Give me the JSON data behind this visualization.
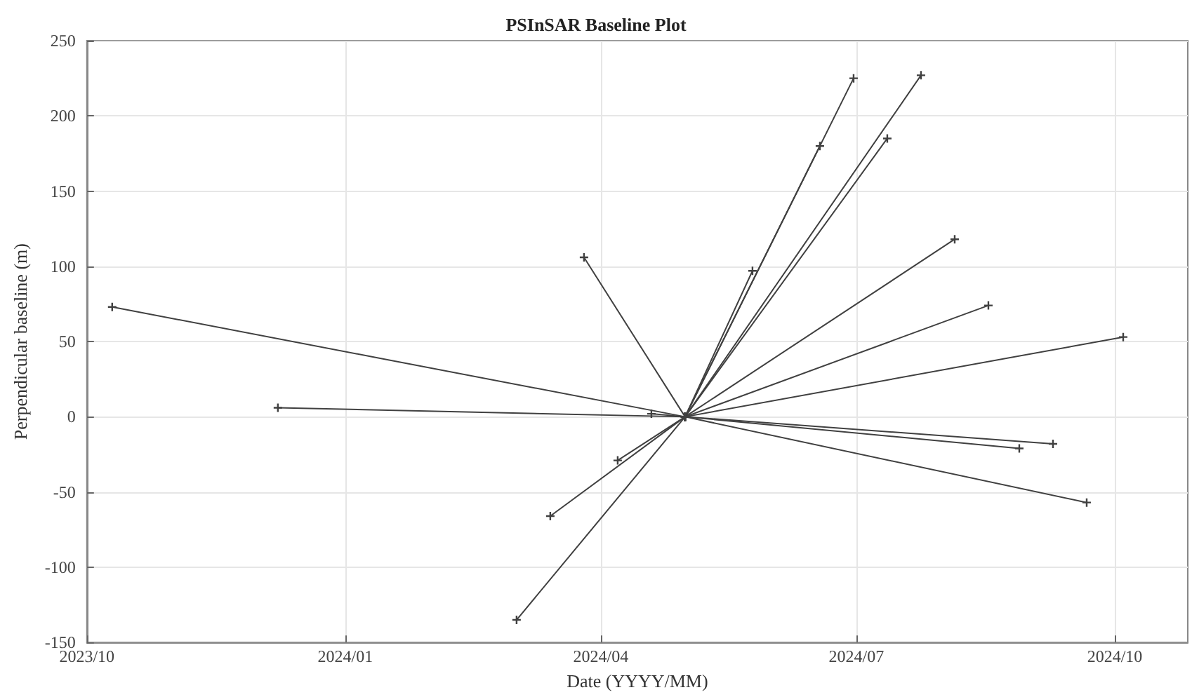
{
  "chart_data": {
    "type": "line",
    "title": "PSInSAR Baseline Plot",
    "xlabel": "Date (YYYY/MM)",
    "ylabel": "Perpendicular baseline (m)",
    "xlim": [
      "2023-10-01",
      "2024-10-27"
    ],
    "xticks": [
      {
        "value": "2023-10-01",
        "label": "2023/10"
      },
      {
        "value": "2024-01-01",
        "label": "2024/01"
      },
      {
        "value": "2024-04-01",
        "label": "2024/04"
      },
      {
        "value": "2024-07-01",
        "label": "2024/07"
      },
      {
        "value": "2024-10-01",
        "label": "2024/10"
      }
    ],
    "ylim": [
      -150,
      250
    ],
    "yticks": [
      -150,
      -100,
      -50,
      0,
      50,
      100,
      150,
      200,
      250
    ],
    "grid": true,
    "marker": "cross",
    "line_style": "solid",
    "series": [
      {
        "color": "#404040",
        "x": [
          "2024-05-01",
          "2023-10-10"
        ],
        "values": [
          0,
          73
        ]
      },
      {
        "color": "#404040",
        "x": [
          "2024-05-01",
          "2023-12-08"
        ],
        "values": [
          0,
          6
        ]
      },
      {
        "color": "#404040",
        "x": [
          "2024-05-01",
          "2024-03-26"
        ],
        "values": [
          0,
          106
        ]
      },
      {
        "color": "#404040",
        "x": [
          "2024-05-01",
          "2024-03-14"
        ],
        "values": [
          0,
          -66
        ]
      },
      {
        "color": "#404040",
        "x": [
          "2024-05-01",
          "2024-03-02"
        ],
        "values": [
          0,
          -135
        ]
      },
      {
        "color": "#404040",
        "x": [
          "2024-05-01",
          "2024-04-07"
        ],
        "values": [
          0,
          -29
        ]
      },
      {
        "color": "#404040",
        "x": [
          "2024-05-01",
          "2024-04-19"
        ],
        "values": [
          0,
          2
        ]
      },
      {
        "color": "#404040",
        "x": [
          "2024-05-01",
          "2024-05-25"
        ],
        "values": [
          0,
          97
        ]
      },
      {
        "color": "#404040",
        "x": [
          "2024-05-01",
          "2024-06-18"
        ],
        "values": [
          0,
          180
        ]
      },
      {
        "color": "#404040",
        "x": [
          "2024-05-01",
          "2024-06-30"
        ],
        "values": [
          0,
          225
        ]
      },
      {
        "color": "#404040",
        "x": [
          "2024-05-01",
          "2024-07-12"
        ],
        "values": [
          0,
          185
        ]
      },
      {
        "color": "#404040",
        "x": [
          "2024-05-01",
          "2024-07-24"
        ],
        "values": [
          0,
          227
        ]
      },
      {
        "color": "#404040",
        "x": [
          "2024-05-01",
          "2024-08-05"
        ],
        "values": [
          0,
          118
        ]
      },
      {
        "color": "#404040",
        "x": [
          "2024-05-01",
          "2024-08-17"
        ],
        "values": [
          0,
          74
        ]
      },
      {
        "color": "#404040",
        "x": [
          "2024-05-01",
          "2024-10-04"
        ],
        "values": [
          0,
          53
        ]
      },
      {
        "color": "#404040",
        "x": [
          "2024-05-01",
          "2024-08-28"
        ],
        "values": [
          0,
          -21
        ]
      },
      {
        "color": "#404040",
        "x": [
          "2024-05-01",
          "2024-09-09"
        ],
        "values": [
          0,
          -18
        ]
      },
      {
        "color": "#404040",
        "x": [
          "2024-05-01",
          "2024-09-21"
        ],
        "values": [
          0,
          -57
        ]
      }
    ]
  }
}
